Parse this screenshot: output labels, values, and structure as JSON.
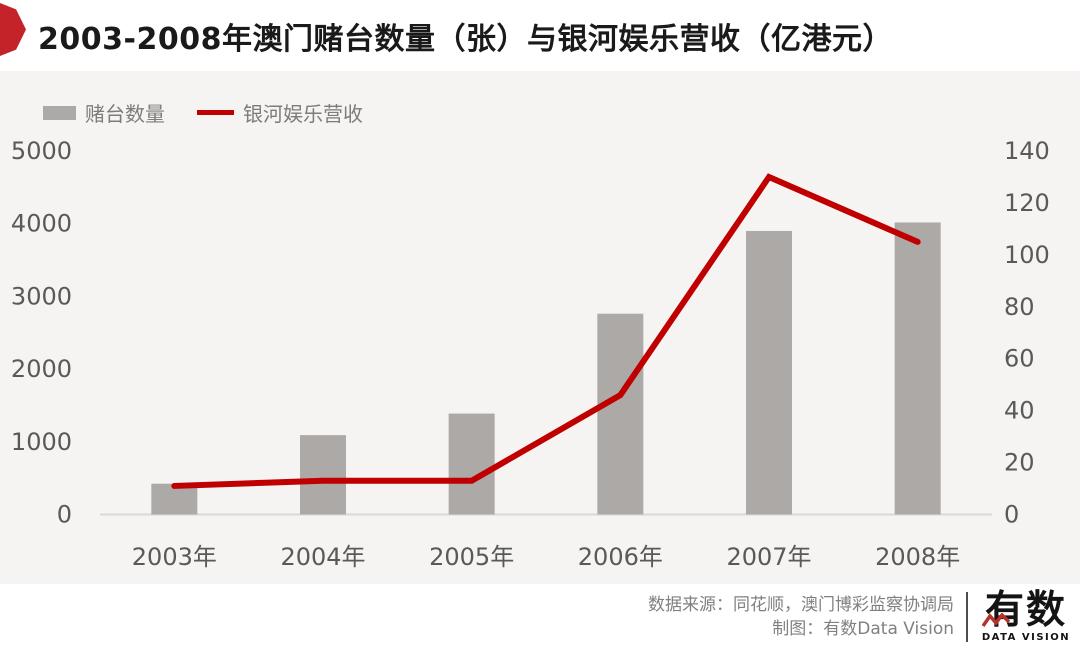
{
  "header": {
    "title": "2003-2008年澳门赌台数量（张）与银河娱乐营收（亿港元）",
    "accent_color": "#c4232a"
  },
  "legend": {
    "items": [
      {
        "label": "赌台数量",
        "swatch": "bar",
        "color": "#aca9a7"
      },
      {
        "label": "银河娱乐营收",
        "swatch": "line",
        "color": "#c00000"
      }
    ]
  },
  "chart_data": {
    "type": "bar",
    "title": "2003-2008年澳门赌台数量（张）与银河娱乐营收（亿港元）",
    "categories": [
      "2003年",
      "2004年",
      "2005年",
      "2006年",
      "2007年",
      "2008年"
    ],
    "series": [
      {
        "name": "赌台数量",
        "type": "bar",
        "axis": "left",
        "unit": "张",
        "color": "#aca9a7",
        "values": [
          424,
          1092,
          1388,
          2762,
          3900,
          4017
        ]
      },
      {
        "name": "银河娱乐营收",
        "type": "line",
        "axis": "right",
        "unit": "亿港元",
        "color": "#c00000",
        "values": [
          11,
          13,
          13,
          46,
          130,
          105
        ]
      }
    ],
    "left_axis": {
      "min": 0,
      "max": 5000,
      "ticks": [
        0,
        1000,
        2000,
        3000,
        4000,
        5000
      ]
    },
    "right_axis": {
      "min": 0,
      "max": 140,
      "ticks": [
        0,
        20,
        40,
        60,
        80,
        100,
        120,
        140
      ]
    },
    "grid": false,
    "legend_position": "top-left"
  },
  "footer": {
    "source_line": "数据来源：同花顺，澳门博彩监察协调局",
    "credit_line": "制图：有数Data Vision",
    "logo_text": "有数",
    "logo_subtext": "DATA VISION"
  },
  "colors": {
    "chart_background": "#f5f4f3",
    "axis_text": "#595959",
    "baseline": "#d9d9d9",
    "footer_text": "#808080",
    "logo_zigzag": "#b5332c"
  }
}
